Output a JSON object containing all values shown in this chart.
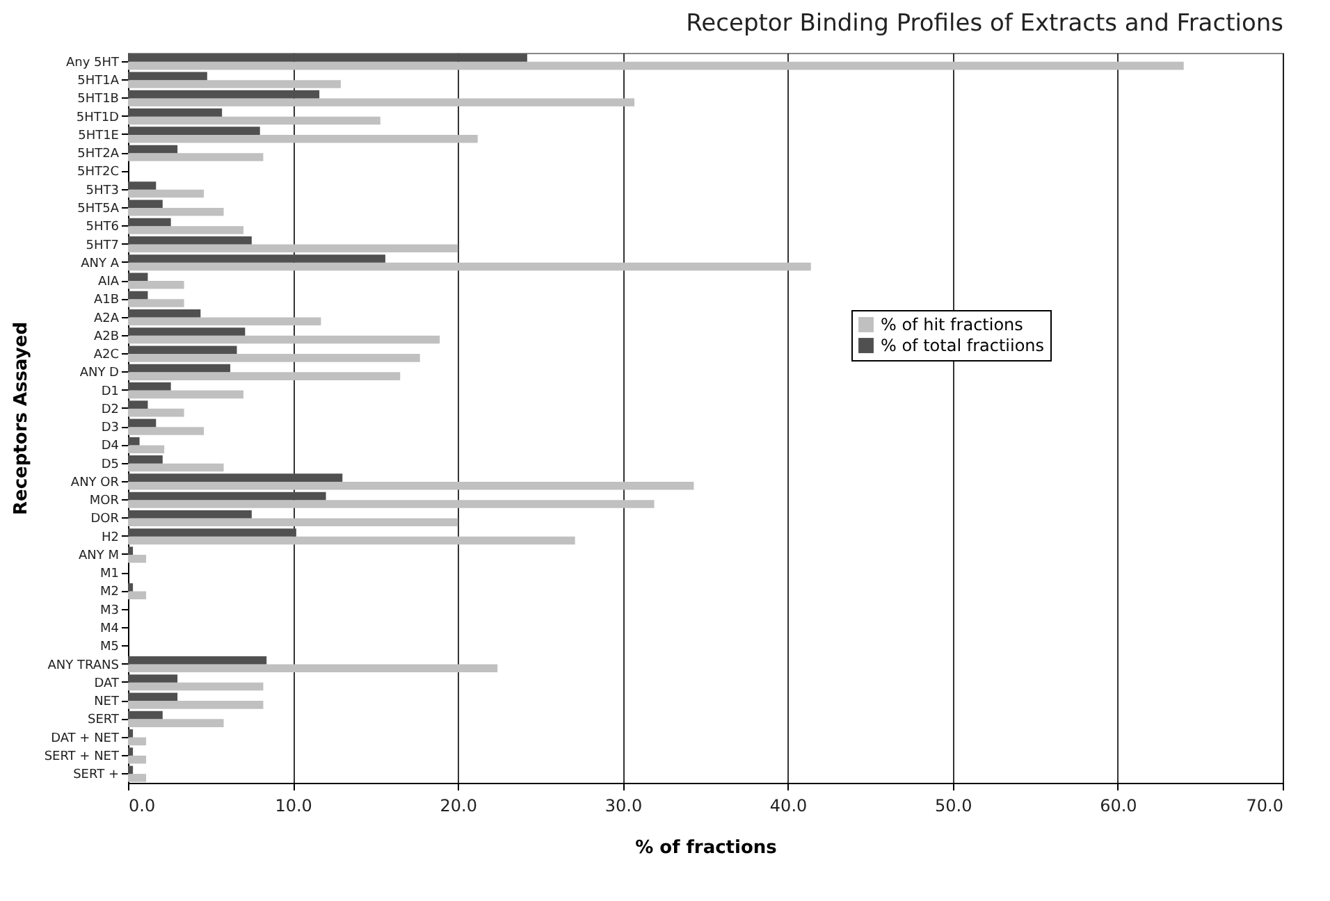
{
  "chart_data": {
    "type": "bar",
    "orientation": "horizontal",
    "title": "Receptor Binding Profiles of Extracts and Fractions",
    "xlabel": "% of fractions",
    "ylabel": "Receptors Assayed",
    "categories": [
      "Any 5HT",
      "5HT1A",
      "5HT1B",
      "5HT1D",
      "5HT1E",
      "5HT2A",
      "5HT2C",
      "5HT3",
      "5HT5A",
      "5HT6",
      "5HT7",
      "ANY A",
      "AIA",
      "A1B",
      "A2A",
      "A2B",
      "A2C",
      "ANY D",
      "D1",
      "D2",
      "D3",
      "D4",
      "D5",
      "ANY OR",
      "MOR",
      "DOR",
      "H2",
      "ANY M",
      "M1",
      "M2",
      "M3",
      "M4",
      "M5",
      "ANY TRANS",
      "DAT",
      "NET",
      "SERT",
      "DAT + NET",
      "SERT + NET",
      "SERT +"
    ],
    "series": [
      {
        "name": "% of hit fractions",
        "color": "#c0c0c0",
        "values": [
          64.0,
          12.9,
          30.7,
          15.3,
          21.2,
          8.2,
          0,
          4.6,
          5.8,
          7.0,
          20.0,
          41.4,
          3.4,
          3.4,
          11.7,
          18.9,
          17.7,
          16.5,
          7.0,
          3.4,
          4.6,
          2.2,
          5.8,
          34.3,
          31.9,
          20.0,
          27.1,
          1.1,
          0,
          1.1,
          0,
          0,
          0,
          22.4,
          8.2,
          8.2,
          5.8,
          1.1,
          1.1,
          1.1
        ]
      },
      {
        "name": "% of total fractiions",
        "color": "#505050",
        "values": [
          24.2,
          4.8,
          11.6,
          5.7,
          8.0,
          3.0,
          0,
          1.7,
          2.1,
          2.6,
          7.5,
          15.6,
          1.2,
          1.2,
          4.4,
          7.1,
          6.6,
          6.2,
          2.6,
          1.2,
          1.7,
          0.7,
          2.1,
          13.0,
          12.0,
          7.5,
          10.2,
          0.3,
          0,
          0.3,
          0,
          0,
          0,
          8.4,
          3.0,
          3.0,
          2.1,
          0.3,
          0.3,
          0.3
        ]
      }
    ],
    "xlim": [
      0,
      70
    ],
    "xticks": [
      {
        "value": 0,
        "label": "0.0"
      },
      {
        "value": 10,
        "label": "10.0"
      },
      {
        "value": 20,
        "label": "20.0"
      },
      {
        "value": 30,
        "label": "30.0"
      },
      {
        "value": 40,
        "label": "40.0"
      },
      {
        "value": 50,
        "label": "50.0"
      },
      {
        "value": 60,
        "label": "60.0"
      },
      {
        "value": 70,
        "label": "70.0"
      }
    ],
    "grid": "x",
    "legend": "right"
  }
}
